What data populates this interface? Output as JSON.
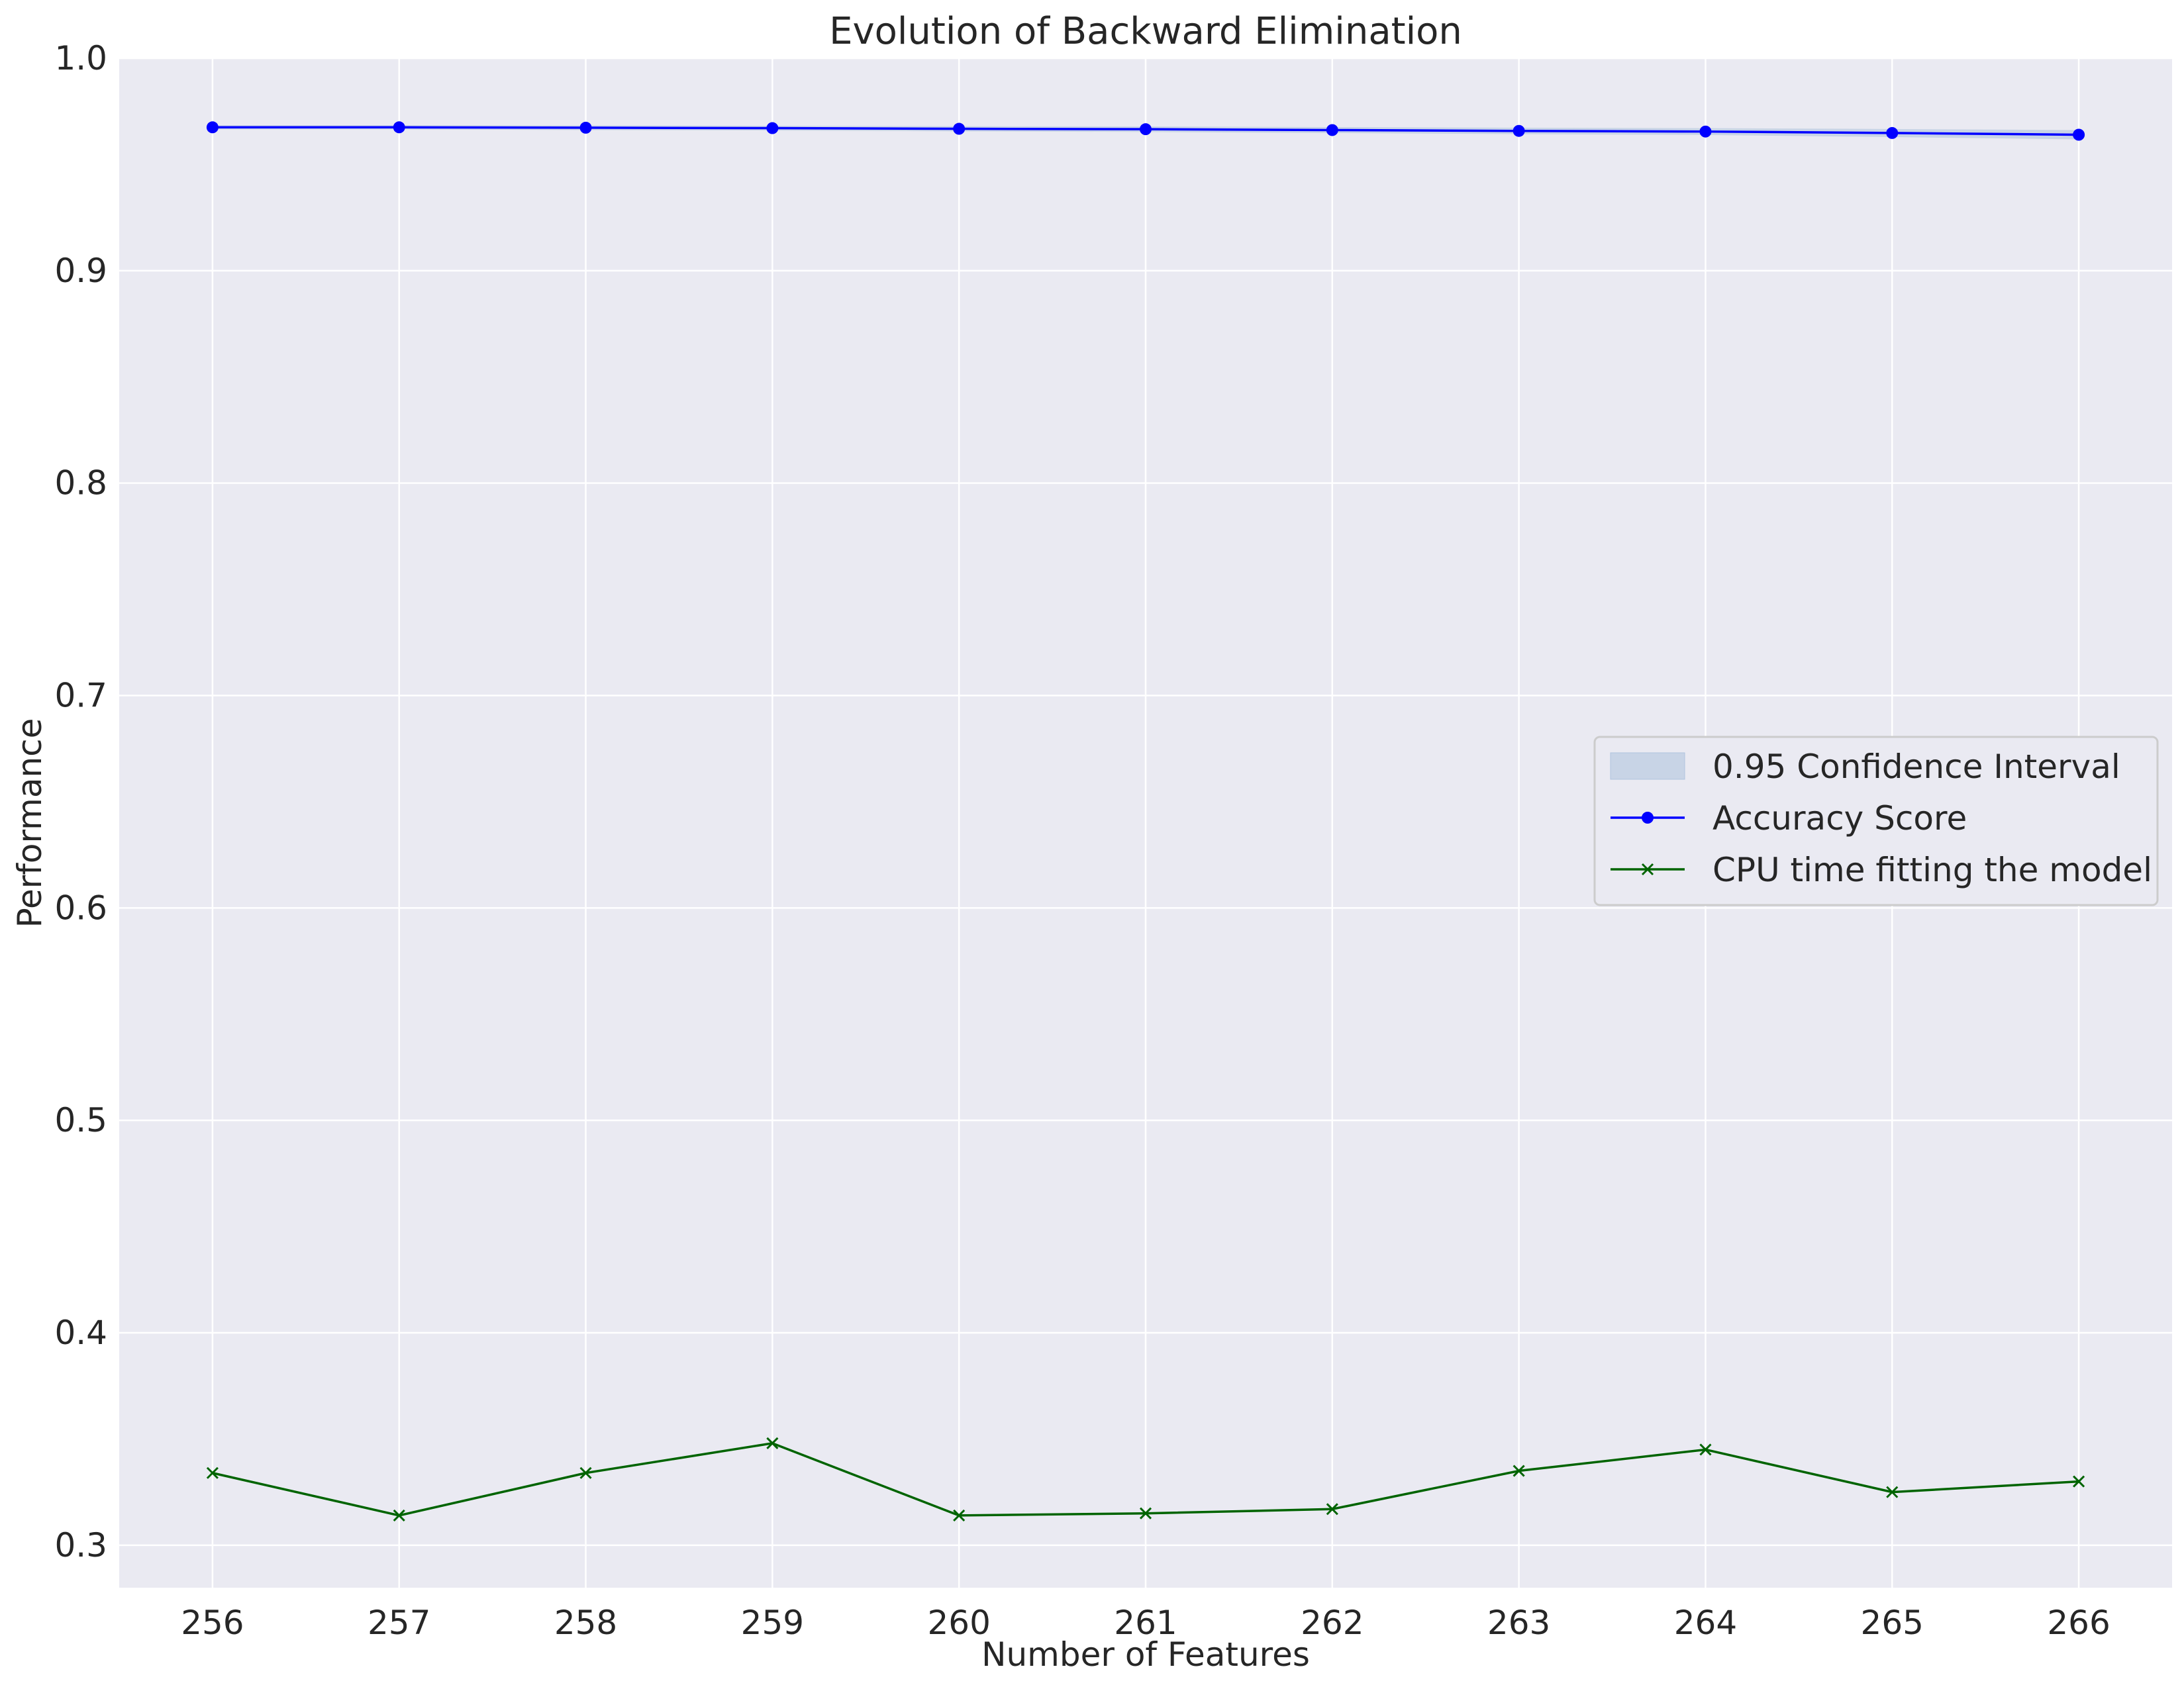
{
  "chart_data": {
    "type": "line",
    "title": "Evolution of Backward Elimination",
    "xlabel": "Number of Features",
    "ylabel": "Performance",
    "x": [
      256,
      257,
      258,
      259,
      260,
      261,
      262,
      263,
      264,
      265,
      266
    ],
    "xlim": [
      255.5,
      266.5
    ],
    "ylim": [
      0.28,
      1.0
    ],
    "yticks": [
      "0.3",
      "0.4",
      "0.5",
      "0.6",
      "0.7",
      "0.8",
      "0.9",
      "1.0"
    ],
    "grid": true,
    "legend_position": "center-right",
    "series": [
      {
        "name": "Accuracy Score",
        "color": "#0000ff",
        "marker": "circle",
        "values": [
          0.9675,
          0.9675,
          0.9673,
          0.9671,
          0.9668,
          0.9666,
          0.9662,
          0.9658,
          0.9655,
          0.9648,
          0.964
        ]
      },
      {
        "name": "CPU time fitting the model",
        "color": "#006400",
        "marker": "x",
        "values": [
          0.334,
          0.314,
          0.334,
          0.348,
          0.314,
          0.315,
          0.317,
          0.335,
          0.345,
          0.325,
          0.33
        ]
      }
    ],
    "confidence_interval": {
      "name": "0.95 Confidence Interval",
      "color": "#b0c4de",
      "upper": [
        0.9685,
        0.9685,
        0.9684,
        0.9682,
        0.968,
        0.9679,
        0.9676,
        0.9673,
        0.9671,
        0.9667,
        0.9662
      ],
      "lower": [
        0.9665,
        0.9665,
        0.9662,
        0.966,
        0.9656,
        0.9653,
        0.9648,
        0.9643,
        0.9639,
        0.9629,
        0.9618
      ]
    }
  }
}
